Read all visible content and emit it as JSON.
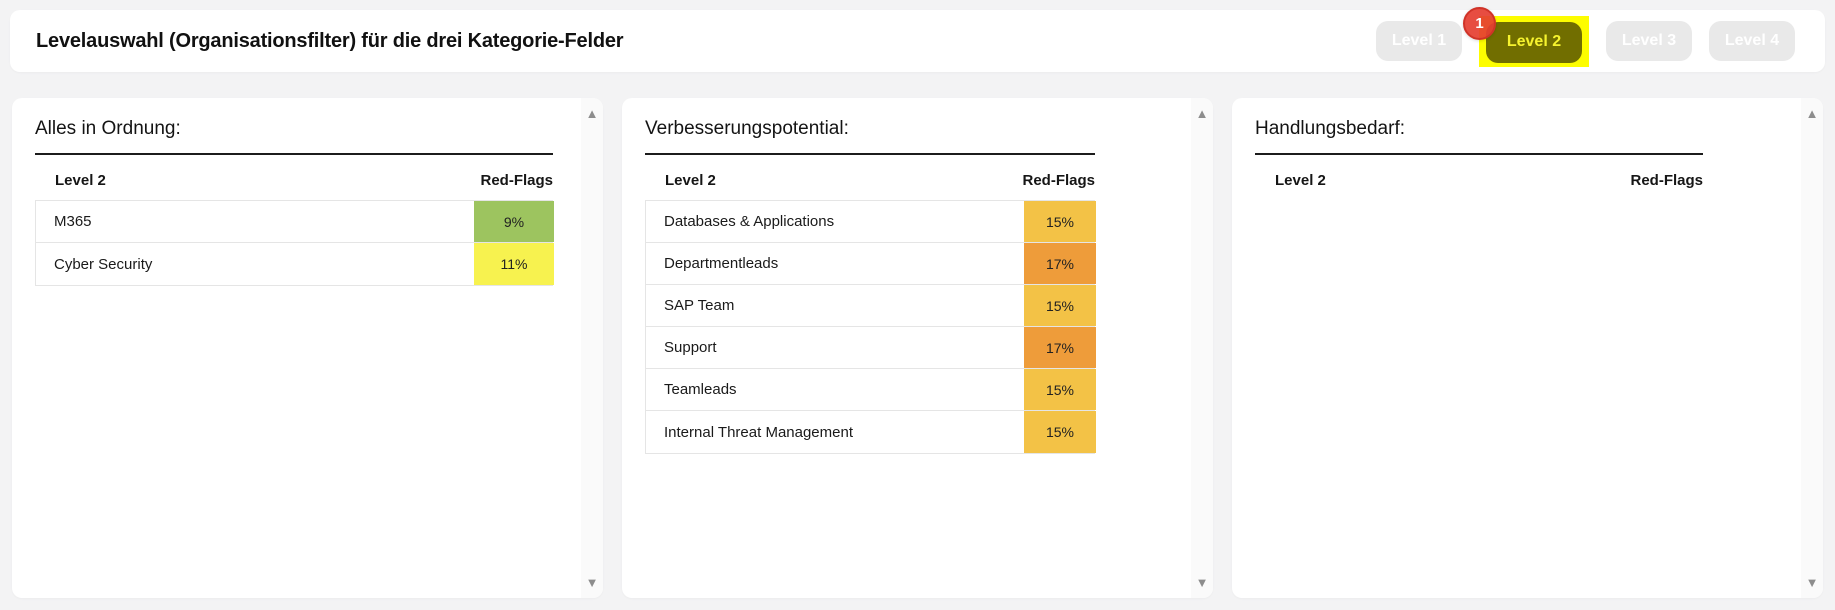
{
  "header": {
    "title": "Levelauswahl (Organisationsfilter) für die drei Kategorie-Felder",
    "badge": "1",
    "buttons": [
      {
        "label": "Level 1",
        "active": false
      },
      {
        "label": "Level 2",
        "active": true
      },
      {
        "label": "Level 3",
        "active": false
      },
      {
        "label": "Level 4",
        "active": false
      }
    ]
  },
  "icons": {
    "scroll_up": "▲",
    "scroll_down": "▼"
  },
  "colors": {
    "highlight_yellow": "#fdfd00",
    "active_button_bg": "#716e00",
    "active_button_text": "#f6f32e",
    "badge_red": "#e53e31",
    "status_green": "#9dc45f",
    "status_yellow": "#f7f24f",
    "status_amber": "#f3c246",
    "status_orange": "#ee9c3a"
  },
  "panels": [
    {
      "title": "Alles in Ordnung:",
      "columns": [
        "Level 2",
        "Red-Flags"
      ],
      "rows": [
        {
          "label": "M365",
          "value": "9%",
          "color": "#9dc45f"
        },
        {
          "label": "Cyber Security",
          "value": "11%",
          "color": "#f7f24f"
        }
      ]
    },
    {
      "title": "Verbesserungspotential:",
      "columns": [
        "Level 2",
        "Red-Flags"
      ],
      "rows": [
        {
          "label": "Databases & Applications",
          "value": "15%",
          "color": "#f3c246"
        },
        {
          "label": "Departmentleads",
          "value": "17%",
          "color": "#ee9c3a"
        },
        {
          "label": "SAP Team",
          "value": "15%",
          "color": "#f3c246"
        },
        {
          "label": "Support",
          "value": "17%",
          "color": "#ee9c3a"
        },
        {
          "label": "Teamleads",
          "value": "15%",
          "color": "#f3c246"
        },
        {
          "label": "Internal Threat Management",
          "value": "15%",
          "color": "#f3c246"
        }
      ]
    },
    {
      "title": "Handlungsbedarf:",
      "columns": [
        "Level 2",
        "Red-Flags"
      ],
      "rows": []
    }
  ]
}
